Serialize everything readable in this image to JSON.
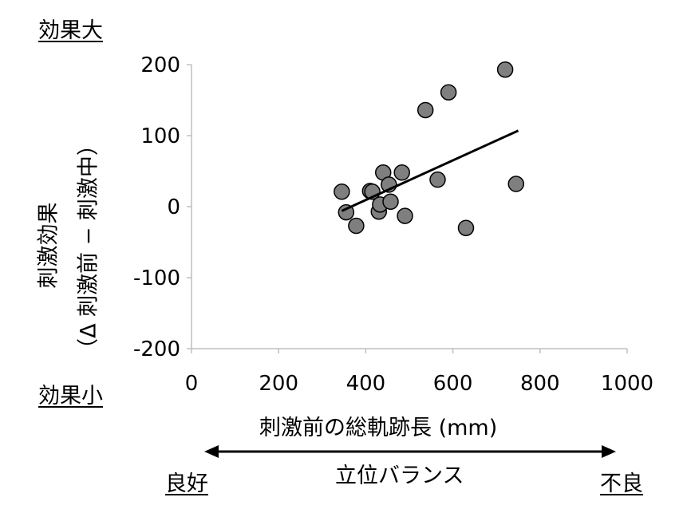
{
  "chart_data": {
    "type": "scatter",
    "title": "",
    "xlabel": "刺激前の総軌跡長 (mm)",
    "ylabel_line1": "刺激効果",
    "ylabel_line2": "（Δ 刺激前 − 刺激中）",
    "xlim": [
      0,
      1000
    ],
    "ylim": [
      -200,
      200
    ],
    "xticks": [
      "0",
      "200",
      "400",
      "600",
      "800",
      "1000"
    ],
    "yticks": [
      "200",
      "100",
      "0",
      "-100",
      "-200"
    ],
    "points": [
      {
        "x": 345,
        "y": 21
      },
      {
        "x": 355,
        "y": -8
      },
      {
        "x": 378,
        "y": -27
      },
      {
        "x": 410,
        "y": 22
      },
      {
        "x": 415,
        "y": 21
      },
      {
        "x": 430,
        "y": -7
      },
      {
        "x": 433,
        "y": 3
      },
      {
        "x": 440,
        "y": 48
      },
      {
        "x": 453,
        "y": 31
      },
      {
        "x": 457,
        "y": 7
      },
      {
        "x": 483,
        "y": 48
      },
      {
        "x": 490,
        "y": -13
      },
      {
        "x": 537,
        "y": 136
      },
      {
        "x": 565,
        "y": 38
      },
      {
        "x": 590,
        "y": 161
      },
      {
        "x": 630,
        "y": -30
      },
      {
        "x": 720,
        "y": 193
      },
      {
        "x": 745,
        "y": 32
      }
    ],
    "trendline": {
      "x": [
        345,
        750
      ],
      "y": [
        -6,
        107
      ]
    }
  },
  "annotations": {
    "effect_large": "効果大",
    "effect_small": "効果小",
    "good": "良好",
    "poor": "不良",
    "balance": "立位バランス"
  },
  "colors": {
    "marker_fill": "#7f7f7f",
    "marker_edge": "#000000",
    "axis": "#bfbfbf",
    "text": "#000000"
  }
}
